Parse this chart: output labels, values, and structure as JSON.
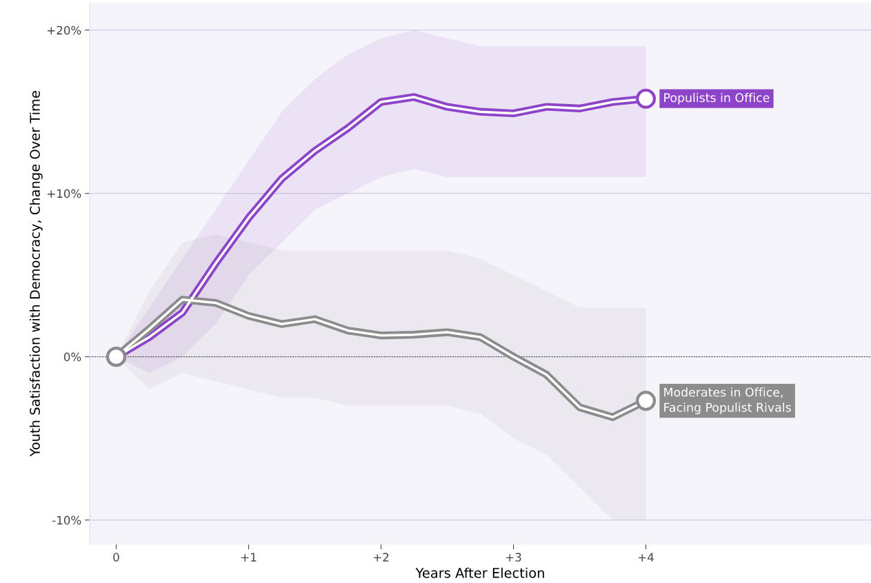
{
  "chart_data": {
    "type": "line",
    "xlabel": "Years After Election",
    "ylabel": "Youth Satisfaction with Democracy, Change Over Time",
    "x": [
      0,
      0.25,
      0.5,
      0.75,
      1,
      1.25,
      1.5,
      1.75,
      2,
      2.25,
      2.5,
      2.75,
      3,
      3.25,
      3.5,
      3.75,
      4
    ],
    "series": [
      {
        "name": "Populists in Office",
        "color": "#8e44c8",
        "values": [
          0,
          1.2,
          2.7,
          5.7,
          8.5,
          10.9,
          12.6,
          14.0,
          15.6,
          15.9,
          15.3,
          15.0,
          14.9,
          15.3,
          15.2,
          15.6,
          15.8
        ],
        "lower": [
          0,
          -1,
          0,
          2,
          5,
          7,
          9,
          10,
          11,
          11.5,
          11,
          11,
          11,
          11,
          11,
          11,
          11
        ],
        "upper": [
          0,
          3,
          6,
          9,
          12,
          15,
          17,
          18.5,
          19.5,
          20,
          19.5,
          19,
          19,
          19,
          19,
          19,
          19
        ]
      },
      {
        "name": "Moderates in Office,\nFacing Populist Rivals",
        "color": "#8c8c8c",
        "values": [
          0,
          1.7,
          3.5,
          3.3,
          2.5,
          2.0,
          2.3,
          1.6,
          1.3,
          1.35,
          1.5,
          1.2,
          0,
          -1.1,
          -3.1,
          -3.7,
          -2.7
        ],
        "lower": [
          0,
          -2,
          -1,
          -1.5,
          -2,
          -2.5,
          -2.5,
          -3,
          -3,
          -3,
          -3,
          -3.5,
          -5,
          -6,
          -8,
          -10,
          -10
        ],
        "upper": [
          0,
          4,
          7,
          7.5,
          7,
          6.5,
          6.5,
          6.5,
          6.5,
          6.5,
          6.5,
          6,
          5,
          4,
          3,
          3,
          3
        ]
      }
    ],
    "xlim": [
      -0.2,
      5.7
    ],
    "ylim": [
      -11.5,
      21.7
    ],
    "xticks": [
      0,
      {
        "value": 1,
        "label": "+1"
      },
      {
        "value": 2,
        "label": "+2"
      },
      {
        "value": 3,
        "label": "+3"
      },
      {
        "value": 4,
        "label": "+4"
      }
    ],
    "yticks": [
      {
        "value": -10,
        "label": "-10%"
      },
      {
        "value": 0,
        "label": "0%"
      },
      {
        "value": 10,
        "label": "+10%"
      },
      {
        "value": 20,
        "label": "+20%"
      }
    ],
    "ref_lines": [
      {
        "axis": "y",
        "value": 0,
        "label": null,
        "color": "#333333",
        "line_style": "dotted"
      }
    ],
    "grid": "y",
    "legend": false
  }
}
